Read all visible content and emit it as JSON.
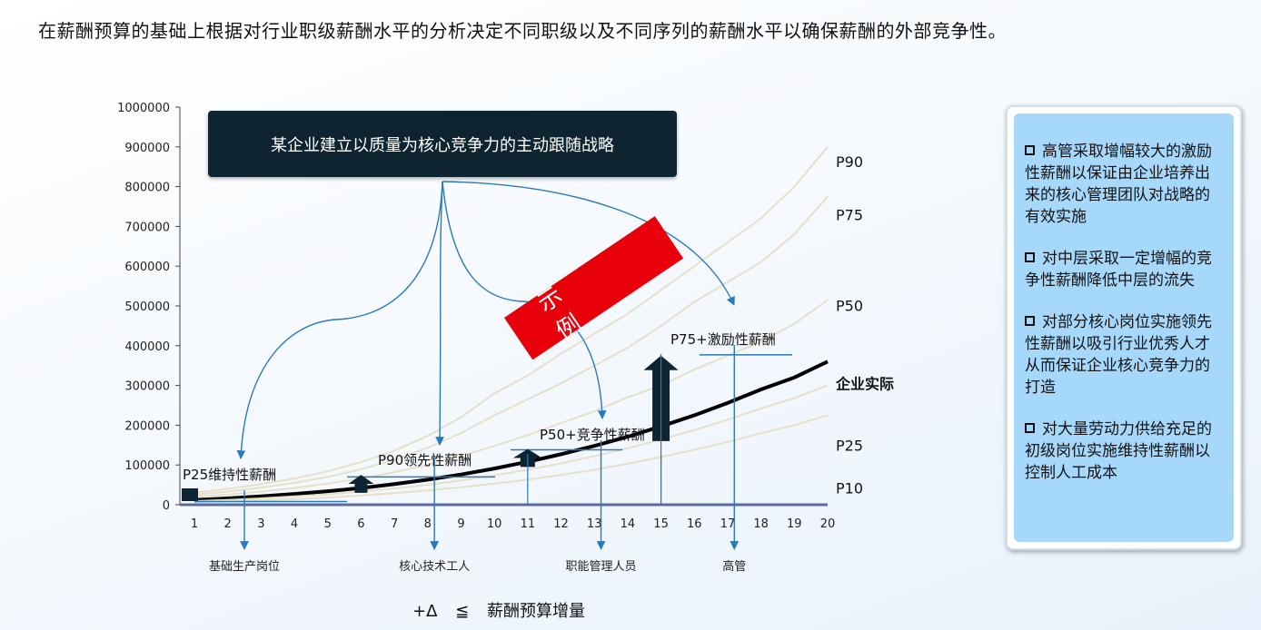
{
  "headline": "在薪酬预算的基础上根据对行业职级薪酬水平的分析决定不同职级以及不同序列的薪酬水平以确保薪酬的外部竞争性。",
  "strategy_box": "某企业建立以质量为核心竞争力的主动跟随战略",
  "example_stamp": "示 例",
  "side_panel": {
    "items": [
      "高管采取增幅较大的激励性薪酬以保证由企业培养出来的核心管理团队对战略的有效实施",
      "对中层采取一定增幅的竞争性薪酬降低中层的流失",
      "对部分核心岗位实施领先性薪酬以吸引行业优秀人才从而保证企业核心竞争力的打造",
      "对大量劳动力供给充足的初级岗位实施维持性薪酬以控制人工成本"
    ]
  },
  "x_footer": {
    "symbol": "+Δ",
    "relation": "≦",
    "text": "薪酬预算增量"
  },
  "colors": {
    "percentile_curve": "#e7e0c8",
    "actual_curve": "#000000",
    "arrow_blue": "#2a79b8",
    "box_dark": "#0e2430",
    "stamp_red": "#e8000b",
    "panel_blue": "#a6d8fb",
    "up_arrow": "#0e2430"
  },
  "chart_data": {
    "type": "line",
    "title": "",
    "xlabel": "",
    "ylabel": "",
    "x": [
      1,
      2,
      3,
      4,
      5,
      6,
      7,
      8,
      9,
      10,
      11,
      12,
      13,
      14,
      15,
      16,
      17,
      18,
      19,
      20
    ],
    "yticks": [
      0,
      100000,
      200000,
      300000,
      400000,
      500000,
      600000,
      700000,
      800000,
      900000,
      1000000
    ],
    "ylim": [
      0,
      1000000
    ],
    "xlim": [
      1,
      20
    ],
    "grid": false,
    "series": [
      {
        "name": "P90",
        "values": [
          30000,
          40000,
          52000,
          66000,
          84000,
          107000,
          136000,
          173000,
          220000,
          280000,
          325000,
          380000,
          430000,
          480000,
          540000,
          600000,
          660000,
          720000,
          800000,
          900000
        ]
      },
      {
        "name": "P75",
        "values": [
          25000,
          33000,
          43000,
          55000,
          70000,
          89000,
          113000,
          143000,
          180000,
          225000,
          265000,
          305000,
          350000,
          395000,
          450000,
          510000,
          560000,
          610000,
          680000,
          775000
        ]
      },
      {
        "name": "P50",
        "values": [
          20000,
          26000,
          33000,
          42000,
          53000,
          66000,
          82000,
          100000,
          122000,
          148000,
          175000,
          205000,
          235000,
          270000,
          300000,
          340000,
          375000,
          410000,
          455000,
          515000
        ]
      },
      {
        "name": "企业实际",
        "values": [
          12000,
          16000,
          21000,
          27000,
          34000,
          42000,
          52000,
          63000,
          76000,
          91000,
          108000,
          127000,
          148000,
          171000,
          197000,
          225000,
          256000,
          290000,
          320000,
          360000
        ]
      },
      {
        "name": "P25",
        "values": [
          9000,
          12000,
          16000,
          21000,
          26000,
          33000,
          41000,
          50000,
          61000,
          74000,
          88000,
          104000,
          122000,
          142000,
          164000,
          188000,
          214000,
          242000,
          268000,
          300000
        ]
      },
      {
        "name": "P10",
        "values": [
          6000,
          8000,
          11000,
          14000,
          18000,
          23000,
          29000,
          36000,
          44000,
          53000,
          63000,
          75000,
          88000,
          103000,
          120000,
          138000,
          158000,
          180000,
          200000,
          225000
        ]
      }
    ],
    "annotations": [
      {
        "text": "P25维持性薪酬",
        "x": 2,
        "y": 60000
      },
      {
        "text": "P90领先性薪酬",
        "x": 8,
        "y": 100000
      },
      {
        "text": "P50+竞争性薪酬",
        "x": 13,
        "y": 165000
      },
      {
        "text": "P75+激励性薪酬",
        "x": 17,
        "y": 395000
      }
    ],
    "position_groups": [
      {
        "label": "基础生产岗位",
        "x": 2.5
      },
      {
        "label": "核心技术工人",
        "x": 8.2
      },
      {
        "label": "职能管理人员",
        "x": 13.2
      },
      {
        "label": "高管",
        "x": 17.2
      }
    ]
  }
}
